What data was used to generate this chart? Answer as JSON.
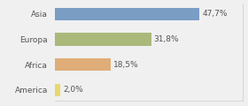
{
  "categories": [
    "Asia",
    "Europa",
    "Africa",
    "America"
  ],
  "values": [
    47.7,
    31.8,
    18.5,
    2.0
  ],
  "labels": [
    "47,7%",
    "31,8%",
    "18,5%",
    "2,0%"
  ],
  "bar_colors": [
    "#7a9dc4",
    "#aab97a",
    "#e0ad78",
    "#e8d96b"
  ],
  "background_color": "#f0f0f0",
  "xlim": [
    0,
    62
  ],
  "label_fontsize": 6.5,
  "category_fontsize": 6.5,
  "bar_height": 0.5
}
